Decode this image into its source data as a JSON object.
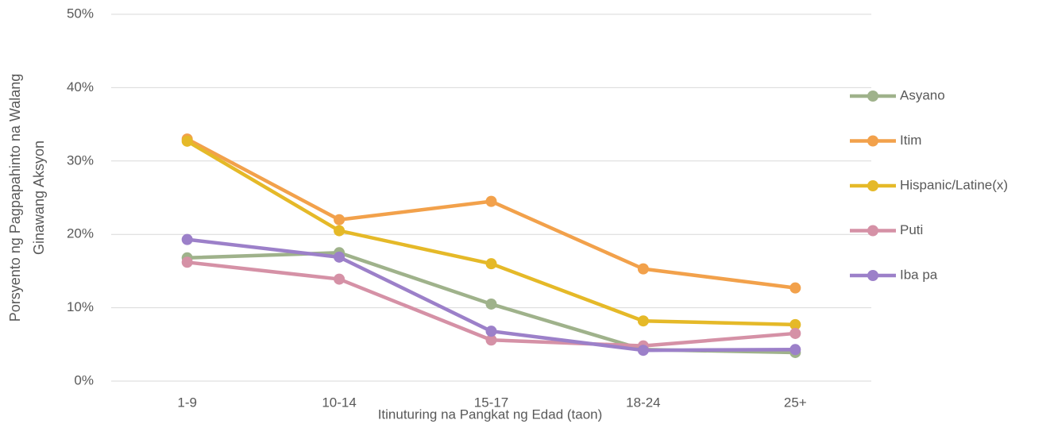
{
  "chart_data": {
    "type": "line",
    "y_label": [
      "Porsyento ng Pagpapahinto na Walang",
      "Ginawang Aksyon"
    ],
    "x_label": "Itinuturing na Pangkat ng Edad (taon)",
    "categories": [
      "1-9",
      "10-14",
      "15-17",
      "18-24",
      "25+"
    ],
    "series": [
      {
        "name": "Asyano",
        "color": "#9fb28b",
        "values": [
          16.8,
          17.5,
          10.5,
          4.3,
          3.9
        ]
      },
      {
        "name": "Itim",
        "color": "#f2a14b",
        "values": [
          33.0,
          22.0,
          24.5,
          15.3,
          12.7
        ]
      },
      {
        "name": "Hispanic/Latine(x)",
        "color": "#e5b928",
        "values": [
          32.7,
          20.5,
          16.0,
          8.2,
          7.7
        ]
      },
      {
        "name": "Puti",
        "color": "#d591a6",
        "values": [
          16.2,
          13.9,
          5.6,
          4.8,
          6.5
        ]
      },
      {
        "name": "Iba pa",
        "color": "#9c80c9",
        "values": [
          19.3,
          16.9,
          6.8,
          4.2,
          4.3
        ]
      }
    ],
    "ylim": [
      0,
      50
    ],
    "yticks": [
      {
        "value": 0,
        "label": "0%"
      },
      {
        "value": 10,
        "label": "10%"
      },
      {
        "value": 20,
        "label": "20%"
      },
      {
        "value": 30,
        "label": "30%"
      },
      {
        "value": 40,
        "label": "40%"
      },
      {
        "value": 50,
        "label": "50%"
      }
    ],
    "grid": true,
    "legend": "right"
  }
}
